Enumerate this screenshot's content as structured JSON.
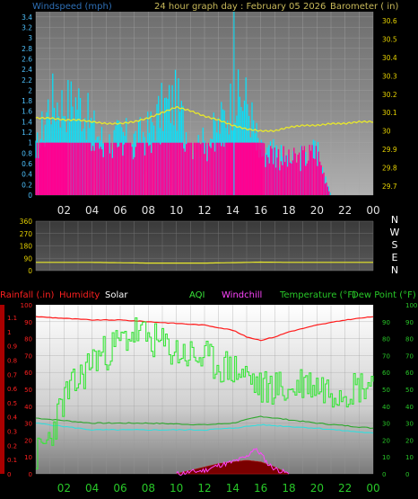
{
  "colors": {
    "wind_title": "#2e6fb5",
    "title": "#c8b95a",
    "cyan": "#00e5ff",
    "magenta": "#ff0090",
    "yellow": "#e8e82a",
    "red": "#ff1a1a",
    "green": "#39e639",
    "violet": "#ff44ff",
    "aqua": "#33dddd",
    "white": "#ffffff",
    "axis_cyan": "#4fc3ff",
    "axis_yellow": "#e6d200",
    "axis_red": "#ff2020",
    "axis_green": "#28c828"
  },
  "top_panel": {
    "left_title": "Windspeed (mph)",
    "center_title": "24 hour graph day : February 05 2026",
    "right_title": "Barometer ( in)",
    "left_ticks": [
      "0",
      "0.2",
      "0.4",
      "0.6",
      "0.8",
      "1",
      "1.2",
      "1.4",
      "1.6",
      "1.8",
      "2",
      "2.2",
      "2.4",
      "2.6",
      "2.8",
      "3",
      "3.2",
      "3.4"
    ],
    "right_ticks": [
      "29.7",
      "29.8",
      "29.9",
      "30",
      "30.1",
      "30.2",
      "30.3",
      "30.4",
      "30.5",
      "30.6"
    ],
    "x_ticks": [
      "02",
      "04",
      "06",
      "08",
      "10",
      "12",
      "14",
      "16",
      "18",
      "20",
      "22",
      "00"
    ]
  },
  "mid_panel": {
    "left_ticks": [
      "0",
      "90",
      "180",
      "270",
      "360"
    ],
    "right_labels": [
      "N",
      "W",
      "S",
      "E",
      "N"
    ],
    "x_ticks": [
      "02",
      "04",
      "06",
      "08",
      "10",
      "12",
      "14",
      "16",
      "18",
      "20",
      "22",
      "00"
    ]
  },
  "bottom_panel": {
    "legend": {
      "rainfall": "Rainfall (.in)",
      "humidity": "Humidity",
      "solar": "Solar",
      "aqi": "AQI",
      "windchill": "Windchill",
      "temperature": "Temperature (°F)",
      "dewpoint": "Dew Point (°F)"
    },
    "left_ticks": [
      "0",
      "0.1",
      "0.2",
      "0.3",
      "0.4",
      "0.5",
      "0.6",
      "0.7",
      "0.8",
      "0.9",
      "1",
      "1.1"
    ],
    "left_ticks2": [
      "0",
      "10",
      "20",
      "30",
      "40",
      "50",
      "60",
      "70",
      "80",
      "90",
      "100"
    ],
    "right_ticks": [
      "0",
      "10",
      "20",
      "30",
      "40",
      "50",
      "60",
      "70",
      "80",
      "90"
    ],
    "right_ticks2": [
      "0",
      "10",
      "20",
      "30",
      "40",
      "50",
      "60",
      "70",
      "80",
      "90",
      "100"
    ],
    "x_ticks": [
      "02",
      "04",
      "06",
      "08",
      "10",
      "12",
      "14",
      "16",
      "18",
      "20",
      "22",
      "00"
    ]
  },
  "chart_data": [
    {
      "type": "line",
      "x_unit": "hour",
      "xlim": [
        0,
        24
      ],
      "series": [
        {
          "axis": "barometer",
          "ylim": [
            29.65,
            30.65
          ],
          "x": [
            0,
            1,
            2,
            3,
            4,
            5,
            6,
            7,
            8,
            9,
            10,
            11,
            12,
            13,
            14,
            15,
            16,
            17,
            18,
            19,
            20,
            21,
            22,
            23,
            24
          ],
          "y": [
            30.07,
            30.07,
            30.06,
            30.06,
            30.05,
            30.04,
            30.04,
            30.05,
            30.07,
            30.1,
            30.13,
            30.11,
            30.08,
            30.06,
            30.03,
            30.01,
            30.0,
            30.0,
            30.02,
            30.03,
            30.03,
            30.04,
            30.04,
            30.05,
            30.05
          ]
        },
        {
          "axis": "windspeed",
          "ylim": [
            0,
            3.5
          ],
          "style": "spiky-bars",
          "x": [
            0,
            1,
            2,
            3,
            4,
            5,
            6,
            7,
            8,
            9,
            10,
            11,
            12,
            13,
            14,
            15,
            16,
            17,
            18,
            19,
            20,
            21,
            22,
            23,
            24
          ],
          "y": [
            1.0,
            2.2,
            2.1,
            2.2,
            1.6,
            1.2,
            1.4,
            1.3,
            1.5,
            2.0,
            2.2,
            1.2,
            1.2,
            1.6,
            2.2,
            2.2,
            1.0,
            1.0,
            0.8,
            0.9,
            1.0,
            0.0,
            0.0,
            0.0,
            0.0
          ]
        }
      ]
    },
    {
      "type": "line",
      "x_unit": "hour",
      "xlim": [
        0,
        24
      ],
      "ylim": [
        0,
        360
      ],
      "series": [
        {
          "name": "Wind direction",
          "x": [
            0,
            4,
            8,
            12,
            14,
            16,
            18,
            22,
            24
          ],
          "y": [
            60,
            60,
            55,
            55,
            58,
            62,
            60,
            60,
            60
          ]
        }
      ]
    },
    {
      "type": "line",
      "x_unit": "hour",
      "xlim": [
        0,
        24
      ],
      "series": [
        {
          "name": "Humidity",
          "ylim": [
            0,
            100
          ],
          "x": [
            0,
            2,
            4,
            6,
            8,
            10,
            12,
            14,
            15,
            16,
            17,
            18,
            20,
            22,
            24
          ],
          "y": [
            93,
            92,
            91,
            91,
            90,
            89,
            88,
            85,
            81,
            79,
            81,
            84,
            88,
            91,
            93
          ]
        },
        {
          "name": "AQI",
          "ylim": [
            0,
            100
          ],
          "x": [
            0,
            1,
            2,
            3,
            4,
            5,
            6,
            7,
            8,
            9,
            10,
            11,
            12,
            13,
            14,
            15,
            16,
            17,
            18,
            19,
            20,
            21,
            22,
            23,
            24
          ],
          "y": [
            10,
            22,
            45,
            55,
            68,
            72,
            78,
            84,
            80,
            76,
            72,
            70,
            68,
            64,
            62,
            58,
            50,
            52,
            48,
            55,
            52,
            50,
            50,
            52,
            55
          ]
        },
        {
          "name": "Temperature",
          "ylim": [
            0,
            100
          ],
          "x": [
            0,
            4,
            8,
            12,
            14,
            16,
            18,
            20,
            24
          ],
          "y": [
            33,
            30,
            30,
            29,
            30,
            34,
            32,
            30,
            27
          ]
        },
        {
          "name": "Dew Point",
          "ylim": [
            0,
            100
          ],
          "x": [
            0,
            4,
            8,
            12,
            14,
            16,
            18,
            20,
            24
          ],
          "y": [
            30,
            26,
            26,
            26,
            27,
            29,
            28,
            27,
            24
          ]
        },
        {
          "name": "Windchill",
          "ylim": [
            0,
            100
          ],
          "x": [
            10,
            12,
            13,
            14,
            15,
            15.5,
            16,
            16.5,
            17,
            18
          ],
          "y": [
            0,
            2,
            5,
            7,
            10,
            15,
            12,
            6,
            3,
            0
          ]
        },
        {
          "name": "Solar",
          "ylim": [
            0,
            100
          ],
          "x": [
            10,
            12,
            13,
            14,
            15,
            16,
            17,
            18
          ],
          "y": [
            0,
            4,
            6,
            7,
            8,
            7,
            4,
            0
          ]
        }
      ]
    }
  ]
}
